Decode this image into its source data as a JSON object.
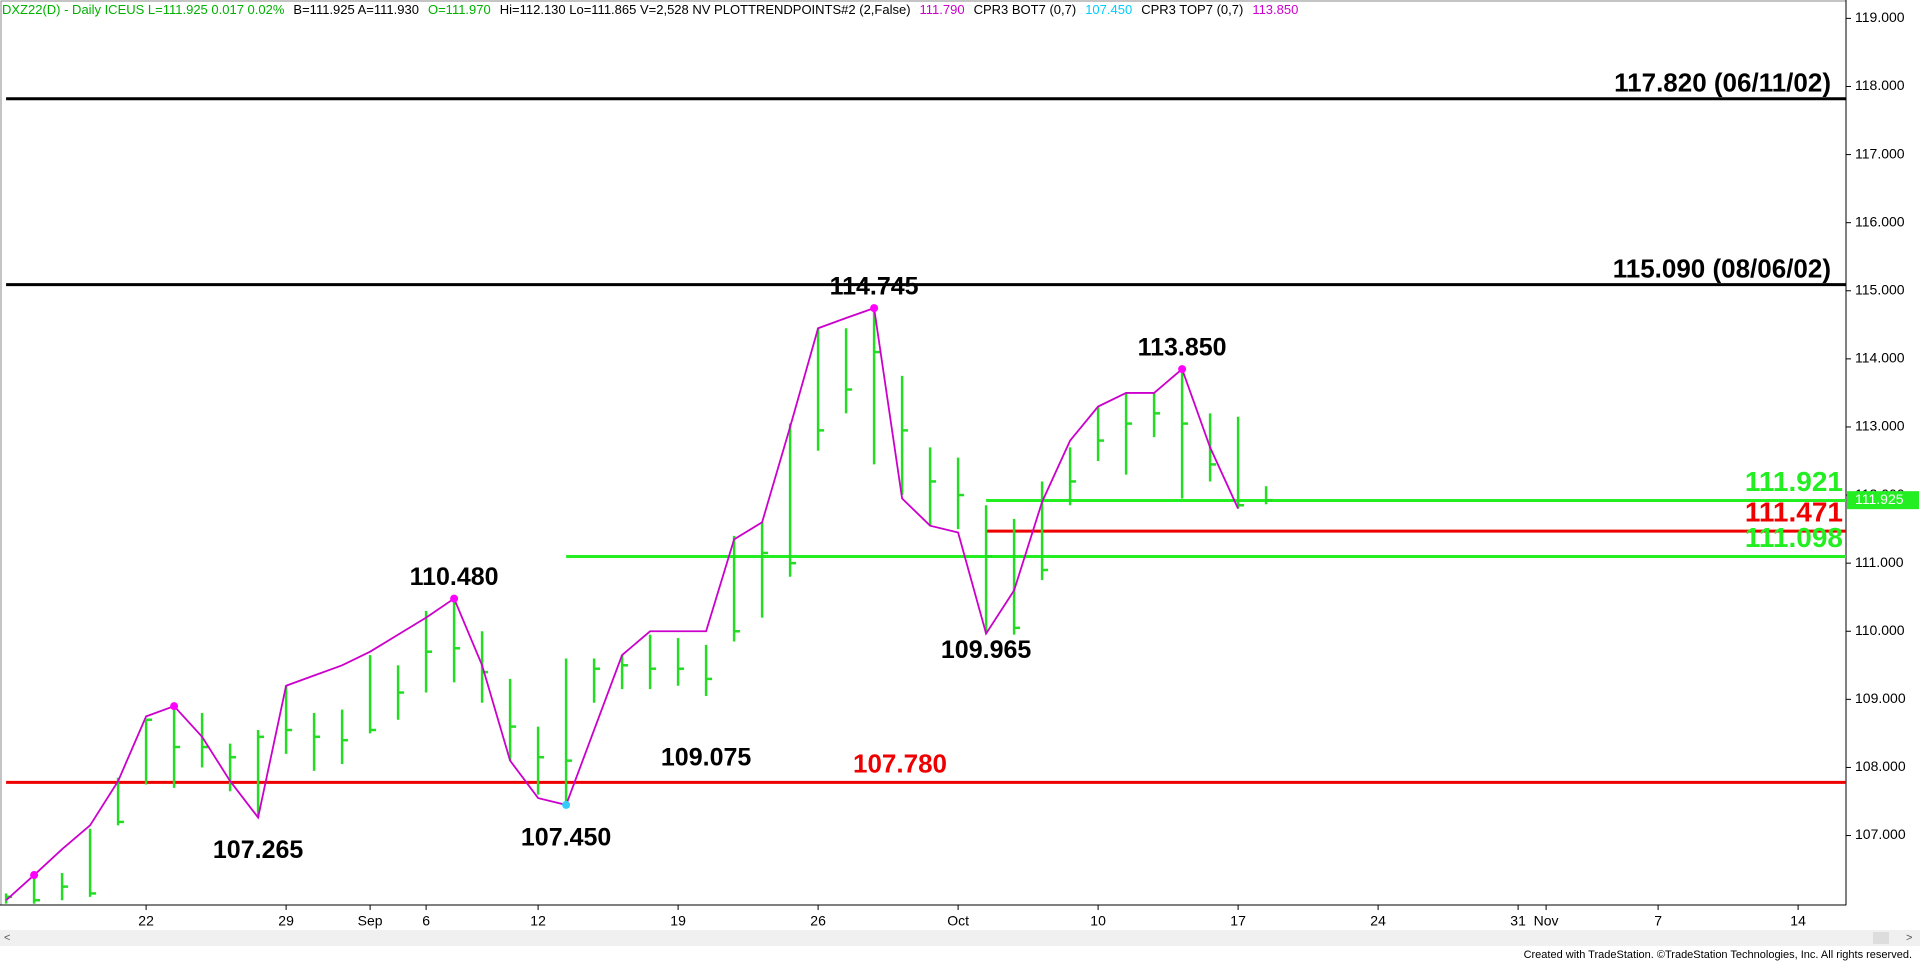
{
  "chart_data": {
    "type": "hlc",
    "header": [
      {
        "text": "DXZ22(D) - Daily  ICEUS  L=111.925  0.017  0.02%",
        "color": "#00b000"
      },
      {
        "text": "B=111.925  A=111.930",
        "color": "#000000"
      },
      {
        "text": "O=111.970",
        "color": "#00b000"
      },
      {
        "text": "Hi=112.130  Lo=111.865  V=2,528  NV  PLOTTRENDPOINTS#2 (2,False)",
        "color": "#000000"
      },
      {
        "text": "111.790",
        "color": "#cc00cc"
      },
      {
        "text": "CPR3 BOT7 (0,7)",
        "color": "#000000"
      },
      {
        "text": "107.450",
        "color": "#00ccff"
      },
      {
        "text": "CPR3 TOP7 (0,7)",
        "color": "#000000"
      },
      {
        "text": "113.850",
        "color": "#cc00cc"
      }
    ],
    "footer": "Created with TradeStation. ©TradeStation Technologies, Inc. All rights reserved.",
    "categories": [
      null,
      null,
      null,
      null,
      null,
      "22",
      null,
      null,
      null,
      null,
      "29",
      null,
      null,
      "Sep",
      null,
      "6",
      null,
      null,
      null,
      "12",
      null,
      null,
      null,
      null,
      "19",
      null,
      null,
      null,
      null,
      "26",
      null,
      null,
      null,
      null,
      "Oct",
      null,
      null,
      null,
      null,
      "10",
      null,
      null,
      null,
      null,
      "17",
      null,
      null,
      null,
      null,
      "24",
      null,
      null,
      null,
      null,
      "31",
      "Nov",
      null,
      null,
      null,
      "7",
      null,
      null,
      null,
      null,
      "14",
      null
    ],
    "bars": {
      "color": "#22dd22",
      "high": [
        106.15,
        106.4,
        106.45,
        107.1,
        107.85,
        108.7,
        108.9,
        108.8,
        108.35,
        108.55,
        109.2,
        108.8,
        108.85,
        109.65,
        109.5,
        110.3,
        110.48,
        110.0,
        109.3,
        108.6,
        109.6,
        109.6,
        109.65,
        109.95,
        109.9,
        109.8,
        111.4,
        111.6,
        113.05,
        114.45,
        114.45,
        114.745,
        113.75,
        112.7,
        112.55,
        111.85,
        111.65,
        112.2,
        112.7,
        113.3,
        113.5,
        113.5,
        113.85,
        113.2,
        113.15,
        112.13,
        null,
        null,
        null,
        null,
        null,
        null,
        null,
        null,
        null,
        null,
        null,
        null,
        null,
        null,
        null,
        null,
        null,
        null,
        null,
        null
      ],
      "low": [
        106.0,
        106.0,
        106.05,
        106.1,
        107.15,
        107.75,
        107.7,
        108.0,
        107.65,
        107.265,
        108.2,
        107.95,
        108.05,
        108.5,
        108.7,
        109.1,
        109.25,
        108.95,
        108.1,
        107.6,
        107.45,
        108.95,
        109.15,
        109.15,
        109.2,
        109.05,
        109.85,
        110.2,
        110.8,
        112.65,
        113.2,
        112.45,
        112.0,
        111.55,
        111.5,
        109.965,
        109.95,
        110.75,
        111.85,
        112.5,
        112.3,
        112.85,
        111.95,
        112.2,
        111.8,
        111.865,
        null,
        null,
        null,
        null,
        null,
        null,
        null,
        null,
        null,
        null,
        null,
        null,
        null,
        null,
        null,
        null,
        null,
        null,
        null,
        null
      ],
      "close": [
        106.1,
        106.05,
        106.25,
        106.15,
        107.2,
        108.7,
        108.3,
        108.3,
        108.15,
        108.45,
        108.55,
        108.45,
        108.4,
        108.55,
        109.1,
        109.7,
        109.75,
        109.4,
        108.6,
        108.15,
        108.1,
        109.45,
        109.5,
        109.45,
        109.45,
        109.3,
        110.0,
        111.15,
        111.0,
        112.95,
        113.55,
        114.1,
        112.95,
        112.2,
        112.0,
        111.1,
        110.05,
        110.9,
        112.2,
        112.8,
        113.05,
        113.2,
        113.05,
        112.45,
        111.85,
        111.925,
        null,
        null,
        null,
        null,
        null,
        null,
        null,
        null,
        null,
        null,
        null,
        null,
        null,
        null,
        null,
        null,
        null,
        null,
        null,
        null
      ]
    },
    "trend": {
      "color": "#cc00cc",
      "values": [
        106.05,
        106.42,
        106.8,
        107.15,
        107.8,
        108.75,
        108.9,
        108.45,
        107.8,
        107.265,
        109.2,
        109.35,
        109.5,
        109.7,
        109.95,
        110.2,
        110.48,
        109.5,
        108.1,
        107.55,
        107.45,
        108.55,
        109.65,
        110.0,
        110.0,
        110.0,
        111.35,
        111.6,
        113.0,
        114.45,
        114.6,
        114.745,
        111.95,
        111.55,
        111.45,
        109.965,
        110.6,
        111.9,
        112.8,
        113.3,
        113.5,
        113.5,
        113.85,
        112.7,
        111.8,
        null,
        null,
        null,
        null,
        null,
        null,
        null,
        null,
        null,
        null,
        null,
        null,
        null,
        null,
        null,
        null,
        null,
        null,
        null,
        null,
        null
      ],
      "marker_colors": [
        null,
        "#ff00ff",
        null,
        null,
        null,
        null,
        "#ff00ff",
        null,
        null,
        null,
        null,
        null,
        null,
        null,
        null,
        null,
        "#ff00ff",
        null,
        null,
        null,
        "#33ccff",
        null,
        null,
        null,
        null,
        null,
        null,
        null,
        null,
        null,
        null,
        "#ff00ff",
        null,
        null,
        null,
        null,
        null,
        null,
        null,
        null,
        null,
        null,
        "#ff00ff",
        null,
        null,
        null,
        null,
        null,
        null,
        null,
        null,
        null,
        null,
        null,
        null,
        null,
        null,
        null,
        null,
        null,
        null,
        null,
        null,
        null,
        null,
        null
      ]
    },
    "levels": [
      {
        "value": 117.82,
        "label": "117.820 (06/11/02)",
        "color": "#000000"
      },
      {
        "value": 115.09,
        "label": "115.090 (08/06/02)",
        "color": "#000000"
      },
      {
        "value": 107.78,
        "label": "107.780",
        "color": "#ee0000"
      },
      {
        "value": 111.921,
        "label": "111.921",
        "color": "#22ee22"
      },
      {
        "value": 111.471,
        "label": "111.471",
        "color": "#ee0000"
      },
      {
        "value": 111.098,
        "label": "111.098",
        "color": "#22ee22"
      }
    ],
    "annotations": [
      "114.745",
      "113.850",
      "110.480",
      "109.965",
      "109.075",
      "107.265",
      "107.450"
    ],
    "last_price": {
      "value": 111.925,
      "label": "111.925",
      "color": "#22ee22"
    },
    "ylim": [
      105.98,
      119.27
    ],
    "yticks": [
      {
        "value": 107,
        "label": "107.000"
      },
      {
        "value": 108,
        "label": "108.000"
      },
      {
        "value": 109,
        "label": "109.000"
      },
      {
        "value": 110,
        "label": "110.000"
      },
      {
        "value": 111,
        "label": "111.000"
      },
      {
        "value": 112,
        "label": "112.000"
      },
      {
        "value": 113,
        "label": "113.000"
      },
      {
        "value": 114,
        "label": "114.000"
      },
      {
        "value": 115,
        "label": "115.000"
      },
      {
        "value": 116,
        "label": "116.000"
      },
      {
        "value": 117,
        "label": "117.000"
      },
      {
        "value": 118,
        "label": "118.000"
      },
      {
        "value": 119,
        "label": "119.000"
      }
    ]
  }
}
